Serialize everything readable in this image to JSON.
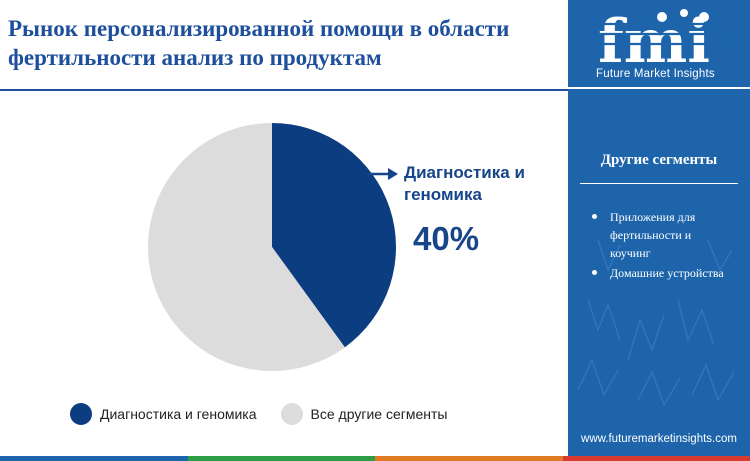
{
  "title": "Рынок персонализированной помощи в области фертильности анализ по продуктам",
  "brand": {
    "logo_text": "fmi",
    "tagline": "Future Market Insights",
    "website": "www.futuremarketinsights.com"
  },
  "side_panel": {
    "heading": "Другие сегменты",
    "items": [
      "Приложения для фертильности и коучинг",
      "Домашние устройства"
    ]
  },
  "colors": {
    "primary": "#0b3d80",
    "secondary": "#dcdcdc",
    "panel": "#1d64ab",
    "title": "#1e4f9c"
  },
  "chart_data": {
    "type": "pie",
    "categories": [
      "Диагностика и геномика",
      "Все другие сегменты"
    ],
    "values": [
      40,
      60
    ],
    "colors": [
      "#0b3d80",
      "#dcdcdc"
    ],
    "highlight": {
      "label": "Диагностика и геномика",
      "value_label": "40%"
    },
    "legend": {
      "position": "bottom",
      "entries": [
        "Диагностика и геномика",
        "Все другие сегменты"
      ]
    }
  }
}
